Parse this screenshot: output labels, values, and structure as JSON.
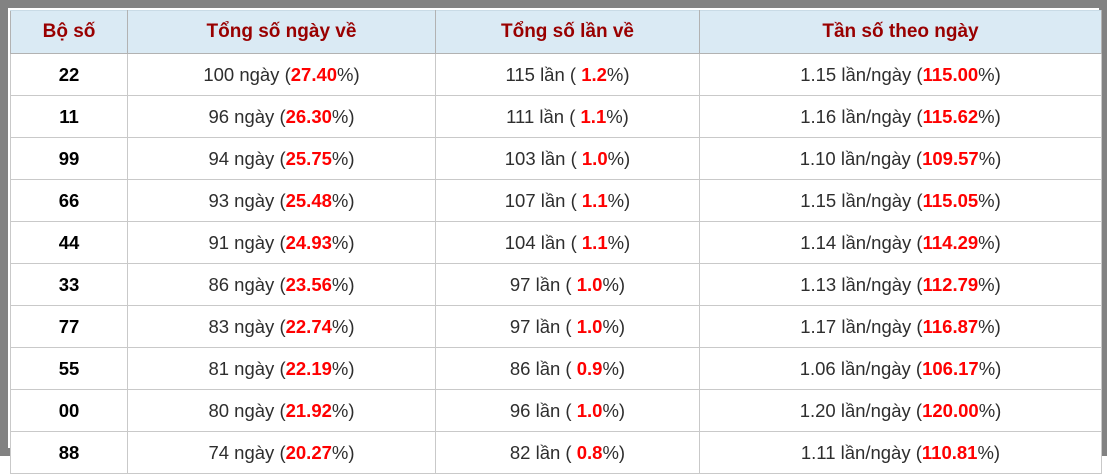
{
  "table": {
    "columns": [
      {
        "label": "Bộ số"
      },
      {
        "label": "Tổng số ngày về"
      },
      {
        "label": "Tổng số lần về"
      },
      {
        "label": "Tần số theo ngày"
      }
    ],
    "percent_close": "%)",
    "accent_red": "#ff0000",
    "header_text_color": "#990000",
    "header_bg_color": "#daeaf4",
    "rows": [
      {
        "pair": "22",
        "days_prefix": "100 ngày (",
        "days_pct": "27.40",
        "times_prefix": "115 lần ( ",
        "times_pct": "1.2",
        "freq_prefix": "1.15 lần/ngày (",
        "freq_pct": "115.00"
      },
      {
        "pair": "11",
        "days_prefix": "96 ngày (",
        "days_pct": "26.30",
        "times_prefix": "111 lần ( ",
        "times_pct": "1.1",
        "freq_prefix": "1.16 lần/ngày (",
        "freq_pct": "115.62"
      },
      {
        "pair": "99",
        "days_prefix": "94 ngày (",
        "days_pct": "25.75",
        "times_prefix": "103 lần ( ",
        "times_pct": "1.0",
        "freq_prefix": "1.10 lần/ngày (",
        "freq_pct": "109.57"
      },
      {
        "pair": "66",
        "days_prefix": "93 ngày (",
        "days_pct": "25.48",
        "times_prefix": "107 lần ( ",
        "times_pct": "1.1",
        "freq_prefix": "1.15 lần/ngày (",
        "freq_pct": "115.05"
      },
      {
        "pair": "44",
        "days_prefix": "91 ngày (",
        "days_pct": "24.93",
        "times_prefix": "104 lần ( ",
        "times_pct": "1.1",
        "freq_prefix": "1.14 lần/ngày (",
        "freq_pct": "114.29"
      },
      {
        "pair": "33",
        "days_prefix": "86 ngày (",
        "days_pct": "23.56",
        "times_prefix": "97 lần ( ",
        "times_pct": "1.0",
        "freq_prefix": "1.13 lần/ngày (",
        "freq_pct": "112.79"
      },
      {
        "pair": "77",
        "days_prefix": "83 ngày (",
        "days_pct": "22.74",
        "times_prefix": "97 lần ( ",
        "times_pct": "1.0",
        "freq_prefix": "1.17 lần/ngày (",
        "freq_pct": "116.87"
      },
      {
        "pair": "55",
        "days_prefix": "81 ngày (",
        "days_pct": "22.19",
        "times_prefix": "86 lần ( ",
        "times_pct": "0.9",
        "freq_prefix": "1.06 lần/ngày (",
        "freq_pct": "106.17"
      },
      {
        "pair": "00",
        "days_prefix": "80 ngày (",
        "days_pct": "21.92",
        "times_prefix": "96 lần ( ",
        "times_pct": "1.0",
        "freq_prefix": "1.20 lần/ngày (",
        "freq_pct": "120.00"
      },
      {
        "pair": "88",
        "days_prefix": "74 ngày (",
        "days_pct": "20.27",
        "times_prefix": "82 lần ( ",
        "times_pct": "0.8",
        "freq_prefix": "1.11 lần/ngày (",
        "freq_pct": "110.81"
      }
    ]
  }
}
